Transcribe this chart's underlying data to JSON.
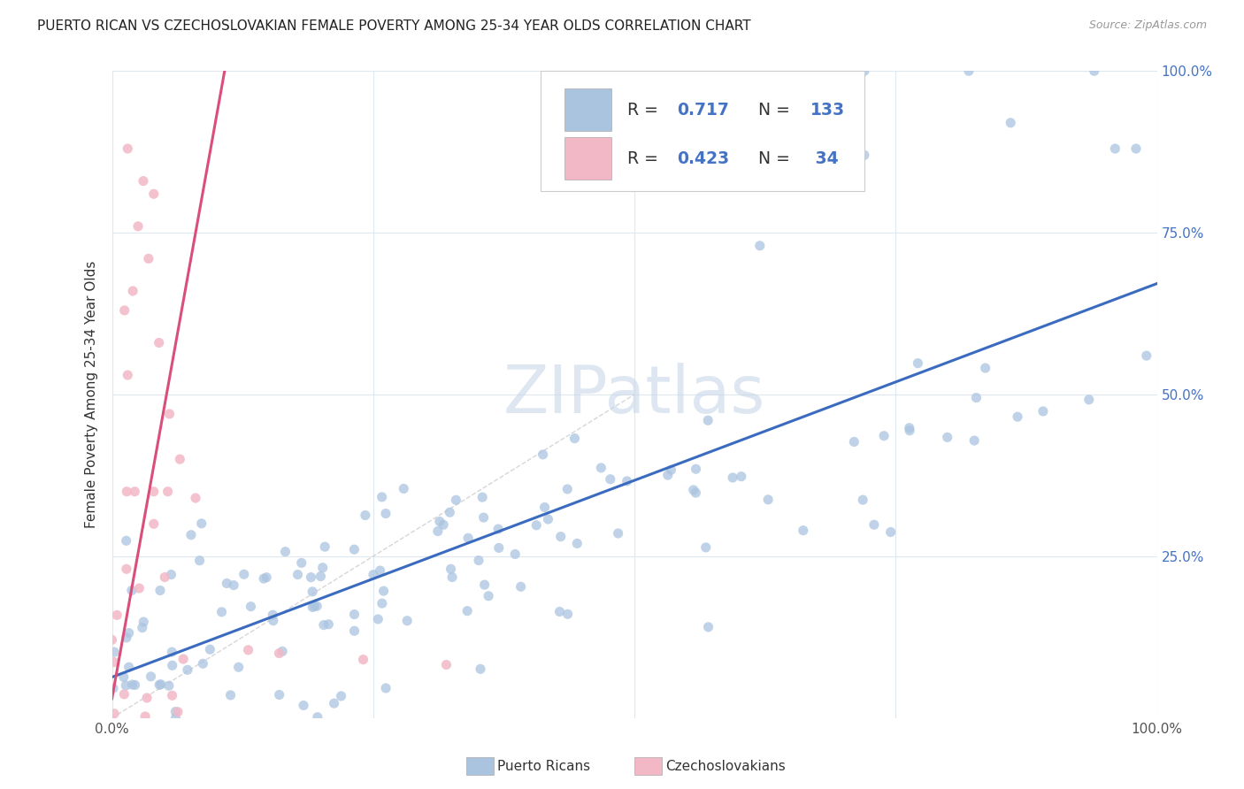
{
  "title": "PUERTO RICAN VS CZECHOSLOVAKIAN FEMALE POVERTY AMONG 25-34 YEAR OLDS CORRELATION CHART",
  "source": "Source: ZipAtlas.com",
  "ylabel": "Female Poverty Among 25-34 Year Olds",
  "xlim": [
    0,
    1
  ],
  "ylim": [
    0,
    1
  ],
  "blue_R": 0.717,
  "blue_N": 133,
  "pink_R": 0.423,
  "pink_N": 34,
  "blue_color": "#aac4e0",
  "pink_color": "#f2b8c6",
  "blue_line_color": "#3a6bbf",
  "pink_line_color": "#d94f7a",
  "diag_line_color": "#cccccc",
  "background_color": "#ffffff",
  "grid_color": "#dde8f0",
  "watermark_color": "#c8d8e8",
  "legend_R_N_color": "#4472c4",
  "right_tick_color": "#4472c4"
}
